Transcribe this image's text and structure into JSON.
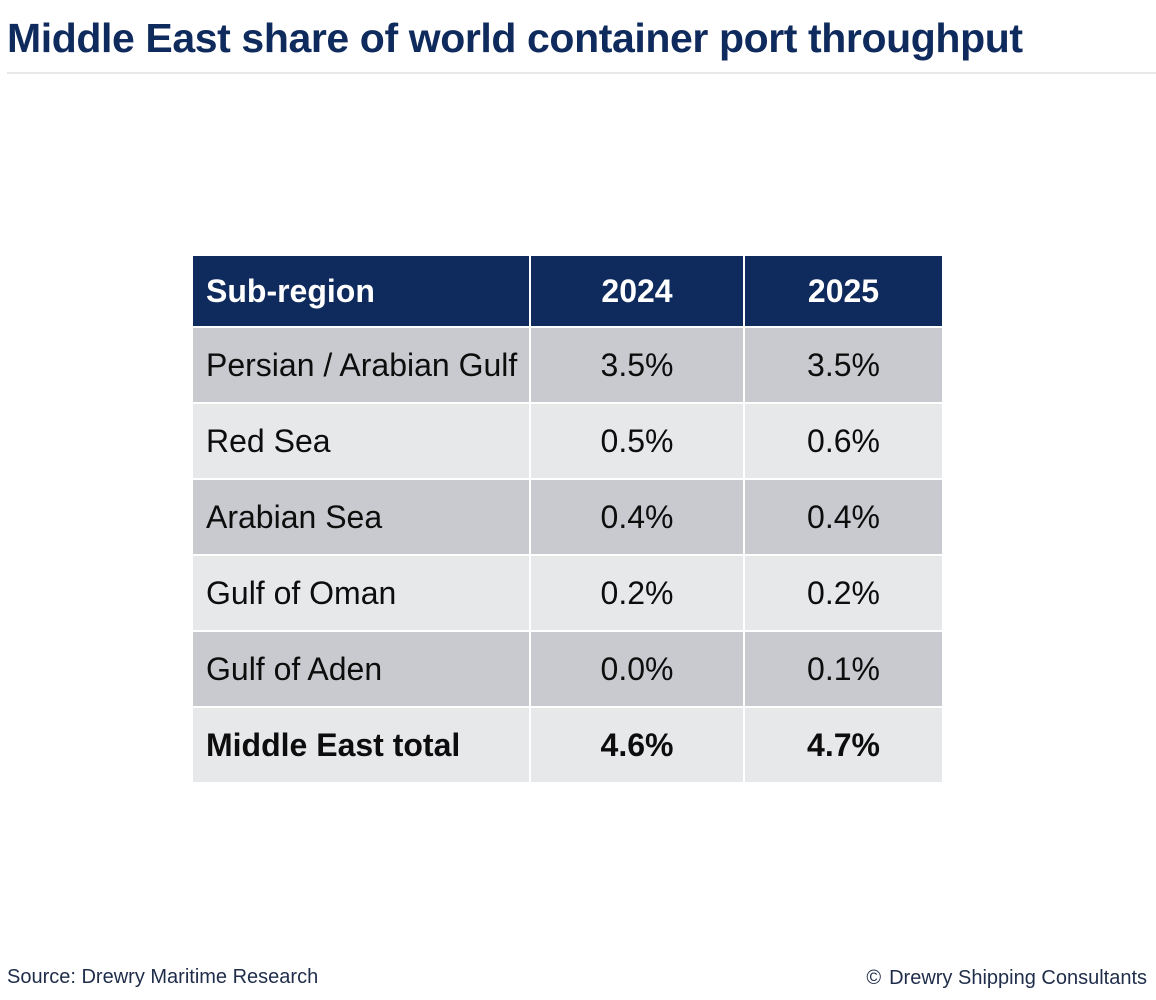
{
  "title": "Middle East share of world container port throughput",
  "chart_data": {
    "type": "table",
    "title": "Middle East share of world container port throughput",
    "columns": [
      "Sub-region",
      "2024",
      "2025"
    ],
    "rows": [
      {
        "label": "Persian / Arabian Gulf",
        "values": [
          "3.5%",
          "3.5%"
        ]
      },
      {
        "label": "Red Sea",
        "values": [
          "0.5%",
          "0.6%"
        ]
      },
      {
        "label": "Arabian Sea",
        "values": [
          "0.4%",
          "0.4%"
        ]
      },
      {
        "label": "Gulf of Oman",
        "values": [
          "0.2%",
          "0.2%"
        ]
      },
      {
        "label": "Gulf of Aden",
        "values": [
          "0.0%",
          "0.1%"
        ]
      },
      {
        "label": "Middle East total",
        "values": [
          "4.6%",
          "4.7%"
        ],
        "total": true
      }
    ]
  },
  "footer": {
    "source": "Source: Drewry Maritime Research",
    "copyright_symbol": "©",
    "copyright_text": "Drewry Shipping Consultants"
  },
  "colors": {
    "header_bg": "#0f2a5c",
    "row_dark": "#c9cacf",
    "row_light": "#e7e8ea",
    "title": "#0f2a5c"
  }
}
